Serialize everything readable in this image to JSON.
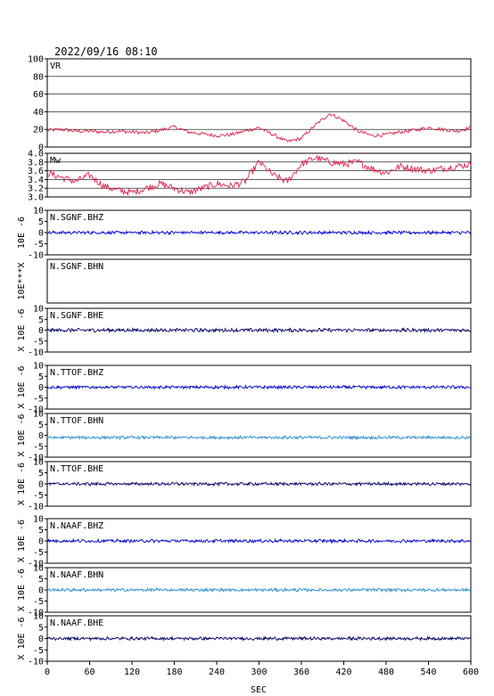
{
  "header": {
    "title": "2022/09/16 08:10"
  },
  "chart_data": [
    {
      "type": "line",
      "panel": "VR",
      "label": "VR",
      "xlim": [
        0,
        600
      ],
      "ylim": [
        0,
        100
      ],
      "yticks": [
        0,
        20,
        40,
        60,
        80,
        100
      ],
      "grid": true,
      "color": "#e0204a",
      "x": [
        0,
        20,
        40,
        60,
        80,
        100,
        120,
        140,
        160,
        180,
        200,
        220,
        240,
        260,
        280,
        300,
        320,
        340,
        360,
        380,
        400,
        420,
        440,
        460,
        480,
        500,
        520,
        540,
        560,
        580,
        600
      ],
      "values": [
        19,
        20,
        18,
        18,
        17,
        18,
        17,
        16,
        19,
        23,
        17,
        15,
        13,
        14,
        18,
        22,
        14,
        6,
        10,
        25,
        38,
        30,
        18,
        13,
        14,
        17,
        19,
        22,
        20,
        18,
        22
      ]
    },
    {
      "type": "line",
      "panel": "Mw",
      "label": "Mw",
      "xlim": [
        0,
        600
      ],
      "ylim": [
        3.0,
        4.0
      ],
      "yticks": [
        3.0,
        3.2,
        3.4,
        3.6,
        3.8,
        4.0
      ],
      "ytick_labels": [
        "3.0",
        "3.2",
        "3.4",
        "3.6",
        "3.8",
        "4.0"
      ],
      "grid": true,
      "color": "#e0204a",
      "x": [
        0,
        20,
        40,
        60,
        80,
        100,
        120,
        140,
        160,
        180,
        200,
        220,
        240,
        260,
        280,
        300,
        320,
        340,
        360,
        380,
        400,
        420,
        440,
        460,
        480,
        500,
        520,
        540,
        560,
        580,
        600
      ],
      "values": [
        3.55,
        3.45,
        3.35,
        3.5,
        3.25,
        3.15,
        3.1,
        3.2,
        3.3,
        3.2,
        3.1,
        3.2,
        3.3,
        3.25,
        3.35,
        3.8,
        3.5,
        3.35,
        3.75,
        3.9,
        3.8,
        3.75,
        3.8,
        3.65,
        3.55,
        3.7,
        3.65,
        3.6,
        3.65,
        3.7,
        3.75
      ]
    },
    {
      "type": "line",
      "panel": "N.SGNF.BHZ",
      "label": "N.SGNF.BHZ",
      "ylabel": "10E -6",
      "ylim": [
        -10,
        10
      ],
      "yticks": [
        -10,
        -5,
        0,
        5,
        10
      ],
      "xlim": [
        0,
        600
      ],
      "color": "#0000cc",
      "amplitude": 0.6
    },
    {
      "type": "line",
      "panel": "N.SGNF.BHN",
      "label": "N.SGNF.BHN",
      "ylabel": "10E***X",
      "xlim": [
        0,
        600
      ],
      "color": "#0000cc",
      "empty": true
    },
    {
      "type": "line",
      "panel": "N.SGNF.BHE",
      "label": "N.SGNF.BHE",
      "ylabel": "X 10E -6",
      "ylim": [
        -10,
        10
      ],
      "yticks": [
        -10,
        -5,
        0,
        5,
        10
      ],
      "xlim": [
        0,
        600
      ],
      "color": "#000066",
      "amplitude": 0.7
    },
    {
      "type": "line",
      "panel": "N.TTOF.BHZ",
      "label": "N.TTOF.BHZ",
      "ylabel": "X 10E -6",
      "ylim": [
        -10,
        10
      ],
      "yticks": [
        -10,
        -5,
        0,
        5,
        10
      ],
      "xlim": [
        0,
        600
      ],
      "color": "#0000cc",
      "amplitude": 0.6
    },
    {
      "type": "line",
      "panel": "N.TTOF.BHN",
      "label": "N.TTOF.BHN",
      "ylabel": "X 10E -6",
      "ylim": [
        -10,
        10
      ],
      "yticks": [
        -10,
        -5,
        0,
        5,
        10
      ],
      "xlim": [
        0,
        600
      ],
      "color": "#2a8fd0",
      "amplitude": 0.6,
      "offset": -1
    },
    {
      "type": "line",
      "panel": "N.TTOF.BHE",
      "label": "N.TTOF.BHE",
      "ylabel": "X 10E -6",
      "ylim": [
        -10,
        10
      ],
      "yticks": [
        -10,
        -5,
        0,
        5,
        10
      ],
      "xlim": [
        0,
        600
      ],
      "color": "#000066",
      "amplitude": 0.6
    },
    {
      "type": "line",
      "panel": "N.NAAF.BHZ",
      "label": "N.NAAF.BHZ",
      "ylabel": "X 10E -6",
      "ylim": [
        -10,
        10
      ],
      "yticks": [
        -10,
        -5,
        0,
        5,
        10
      ],
      "xlim": [
        0,
        600
      ],
      "color": "#0000cc",
      "amplitude": 0.6
    },
    {
      "type": "line",
      "panel": "N.NAAF.BHN",
      "label": "N.NAAF.BHN",
      "ylabel": "X 10E -6",
      "ylim": [
        -10,
        10
      ],
      "yticks": [
        -10,
        -5,
        0,
        5,
        10
      ],
      "xlim": [
        0,
        600
      ],
      "color": "#2a8fd0",
      "amplitude": 0.6
    },
    {
      "type": "line",
      "panel": "N.NAAF.BHE",
      "label": "N.NAAF.BHE",
      "ylabel": "X 10E -6",
      "ylim": [
        -10,
        10
      ],
      "yticks": [
        -10,
        -5,
        0,
        5,
        10
      ],
      "xlim": [
        0,
        600
      ],
      "color": "#000066",
      "amplitude": 0.6
    }
  ],
  "xaxis": {
    "label": "SEC",
    "ticks": [
      0,
      60,
      120,
      180,
      240,
      300,
      360,
      420,
      480,
      540,
      600
    ]
  }
}
